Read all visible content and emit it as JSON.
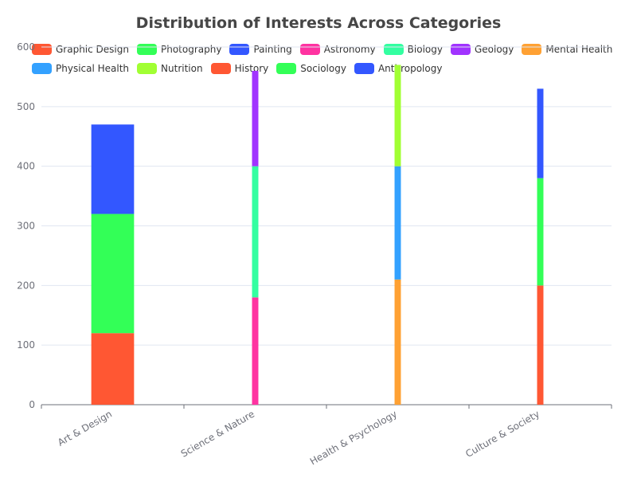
{
  "chart_data": {
    "type": "bar",
    "stacked": true,
    "title": "Distribution of Interests Across Categories",
    "xlabel": "",
    "ylabel": "",
    "ylim": [
      0,
      600
    ],
    "yticks": [
      0,
      100,
      200,
      300,
      400,
      500,
      600
    ],
    "grid": true,
    "legend_position": "top",
    "categories": [
      "Art & Design",
      "Science & Nature",
      "Health & Psychology",
      "Culture & Society"
    ],
    "series": [
      {
        "name": "Graphic Design",
        "color": "#ff5733",
        "values": [
          120,
          null,
          null,
          null
        ]
      },
      {
        "name": "Photography",
        "color": "#33ff57",
        "values": [
          200,
          null,
          null,
          null
        ]
      },
      {
        "name": "Painting",
        "color": "#3357ff",
        "values": [
          150,
          null,
          null,
          null
        ]
      },
      {
        "name": "Astronomy",
        "color": "#ff33a1",
        "values": [
          null,
          180,
          null,
          null
        ]
      },
      {
        "name": "Biology",
        "color": "#33ffa1",
        "values": [
          null,
          220,
          null,
          null
        ]
      },
      {
        "name": "Geology",
        "color": "#a133ff",
        "values": [
          null,
          160,
          null,
          null
        ]
      },
      {
        "name": "Mental Health",
        "color": "#ffa133",
        "values": [
          null,
          null,
          210,
          null
        ]
      },
      {
        "name": "Physical Health",
        "color": "#33a1ff",
        "values": [
          null,
          null,
          190,
          null
        ]
      },
      {
        "name": "Nutrition",
        "color": "#a1ff33",
        "values": [
          null,
          null,
          170,
          null
        ]
      },
      {
        "name": "History",
        "color": "#ff5733",
        "values": [
          null,
          null,
          null,
          200
        ]
      },
      {
        "name": "Sociology",
        "color": "#33ff57",
        "values": [
          null,
          null,
          null,
          180
        ]
      },
      {
        "name": "Anthropology",
        "color": "#3357ff",
        "values": [
          null,
          null,
          null,
          150
        ]
      }
    ]
  }
}
